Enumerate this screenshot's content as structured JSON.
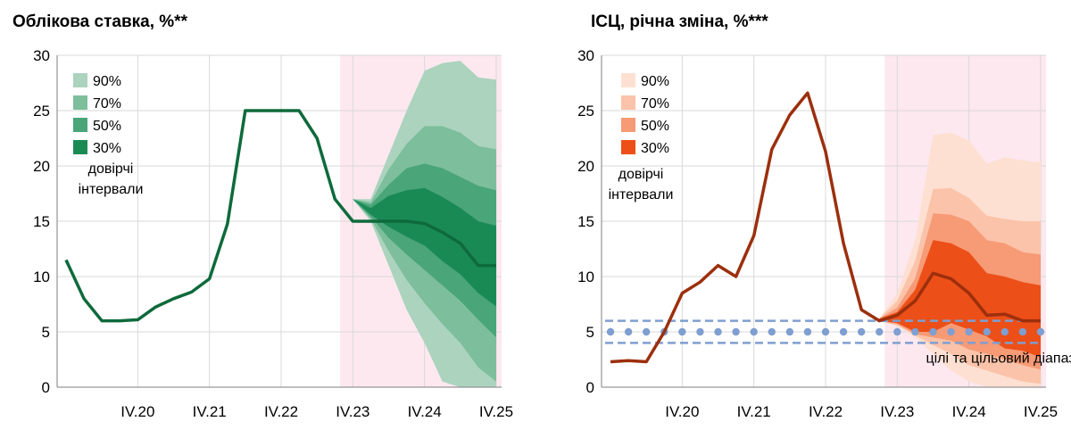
{
  "chart_data": [
    {
      "type": "line",
      "title": "Облікова ставка, %**",
      "xlabel": "",
      "ylabel": "",
      "ylim": [
        0,
        30
      ],
      "yticks": [
        "0",
        "5",
        "10",
        "15",
        "20",
        "25",
        "30"
      ],
      "xticks": [
        {
          "label": "IV.20",
          "x": 4
        },
        {
          "label": "IV.21",
          "x": 8
        },
        {
          "label": "IV.22",
          "x": 12
        },
        {
          "label": "IV.23",
          "x": 16
        },
        {
          "label": "IV.24",
          "x": 20
        },
        {
          "label": "IV.25",
          "x": 24
        }
      ],
      "xlim": [
        -0.5,
        24.3
      ],
      "forecast_start": 15.3,
      "series": [
        {
          "name": "Облікова ставка",
          "x": [
            0,
            1,
            2,
            3,
            4,
            5,
            6,
            7,
            8,
            9,
            10,
            11,
            12,
            13,
            14,
            15,
            16,
            17,
            18,
            19,
            20,
            21,
            22,
            23,
            24
          ],
          "values": [
            11.5,
            8,
            6,
            6,
            6.1,
            7.25,
            8,
            8.6,
            9.8,
            14.75,
            25,
            25,
            25,
            25,
            22.5,
            17,
            15,
            15,
            15,
            15,
            14.8,
            14,
            13,
            11,
            11
          ]
        }
      ],
      "fan": {
        "x": [
          16,
          17,
          18,
          19,
          20,
          21,
          22,
          23,
          24
        ],
        "bands": [
          {
            "name": "90%",
            "color": "#abd3bd",
            "upper": [
              17,
              17,
              21,
              25,
              28.6,
              29.3,
              29.5,
              28,
              27.8
            ],
            "lower": [
              17,
              15,
              11,
              7,
              4,
              0.5,
              0,
              0,
              0
            ]
          },
          {
            "name": "70%",
            "color": "#7dbe9c",
            "upper": [
              17,
              16.7,
              19.7,
              22,
              23.6,
              23.6,
              23,
              21.8,
              21.5
            ],
            "lower": [
              17,
              15.2,
              12.3,
              9.7,
              7.6,
              5.7,
              4,
              1.8,
              0.5
            ]
          },
          {
            "name": "50%",
            "color": "#4aa579",
            "upper": [
              17,
              16.5,
              18.3,
              19.8,
              20.2,
              19.8,
              19,
              18.2,
              17.8
            ],
            "lower": [
              17,
              15.4,
              13.5,
              12,
              10.6,
              9.2,
              7.8,
              6.1,
              4.5
            ]
          },
          {
            "name": "30%",
            "color": "#1a8a55",
            "upper": [
              17,
              16.2,
              17.3,
              17.8,
              18,
              17.2,
              16.2,
              15,
              14.6
            ],
            "lower": [
              17,
              15.6,
              14.5,
              13.6,
              12.8,
              11.4,
              10.2,
              8.5,
              7.3
            ]
          }
        ]
      },
      "legend_note": "довірчі інтервали",
      "line_color": "#0e6a3b",
      "forecast_bg": "#fde8f0"
    },
    {
      "type": "line",
      "title": "ІСЦ, річна зміна, %***",
      "xlabel": "",
      "ylabel": "",
      "ylim": [
        0,
        30
      ],
      "yticks": [
        "0",
        "5",
        "10",
        "15",
        "20",
        "25",
        "30"
      ],
      "xticks": [
        {
          "label": "IV.20",
          "x": 4
        },
        {
          "label": "IV.21",
          "x": 8
        },
        {
          "label": "IV.22",
          "x": 12
        },
        {
          "label": "IV.23",
          "x": 16
        },
        {
          "label": "IV.24",
          "x": 20
        },
        {
          "label": "IV.25",
          "x": 24
        }
      ],
      "xlim": [
        -0.5,
        24.3
      ],
      "forecast_start": 15.3,
      "series": [
        {
          "name": "ІСЦ",
          "x": [
            0,
            1,
            2,
            3,
            4,
            5,
            6,
            7,
            8,
            9,
            10,
            11,
            12,
            13,
            14,
            15,
            16,
            17,
            18,
            19,
            20,
            21,
            22,
            23,
            24
          ],
          "values": [
            2.3,
            2.4,
            2.3,
            5,
            8.5,
            9.5,
            11,
            10,
            13.7,
            21.5,
            24.6,
            26.6,
            21.3,
            13,
            7,
            6,
            6.5,
            7.8,
            10.3,
            9.8,
            8.5,
            6.5,
            6.6,
            6,
            6
          ]
        }
      ],
      "fan": {
        "x": [
          15,
          16,
          17,
          18,
          19,
          20,
          21,
          22,
          23,
          24
        ],
        "bands": [
          {
            "name": "90%",
            "color": "#fde0d2",
            "upper": [
              6.2,
              8.5,
              13.3,
              22.8,
              23,
              22.3,
              20.2,
              20.8,
              20.5,
              20.3
            ],
            "lower": [
              6,
              5.5,
              4.5,
              3,
              1.5,
              0.5,
              0,
              0,
              0,
              0
            ]
          },
          {
            "name": "70%",
            "color": "#fbc3a9",
            "upper": [
              6.2,
              7.8,
              11.4,
              17.9,
              18,
              17.1,
              15.5,
              15.2,
              15,
              15
            ],
            "lower": [
              6,
              5.6,
              4.7,
              3.8,
              3,
              2,
              1.5,
              1,
              0.5,
              0.3
            ]
          },
          {
            "name": "50%",
            "color": "#f79a76",
            "upper": [
              6.2,
              7.2,
              9.8,
              15.7,
              15.6,
              15,
              13.3,
              13,
              12.2,
              12
            ],
            "lower": [
              6,
              5.7,
              4.8,
              4.5,
              4.2,
              3.4,
              3,
              2.5,
              2,
              1.6
            ]
          },
          {
            "name": "30%",
            "color": "#ec4f17",
            "upper": [
              6.2,
              6.8,
              8.8,
              13.3,
              13,
              12.2,
              10.3,
              10,
              9.5,
              9.2
            ],
            "lower": [
              6,
              5.8,
              5,
              5,
              5.8,
              5.2,
              4.6,
              3.5,
              3.3,
              2.7
            ]
          }
        ]
      },
      "target": {
        "value": 5,
        "band": [
          4,
          6
        ],
        "color": "#7f9ed1",
        "label": "цілі та цільовий діапазон інфляції"
      },
      "legend_note": "довірчі інтервали",
      "line_color": "#9c2f0d",
      "forecast_bg": "#fde8f0"
    }
  ]
}
